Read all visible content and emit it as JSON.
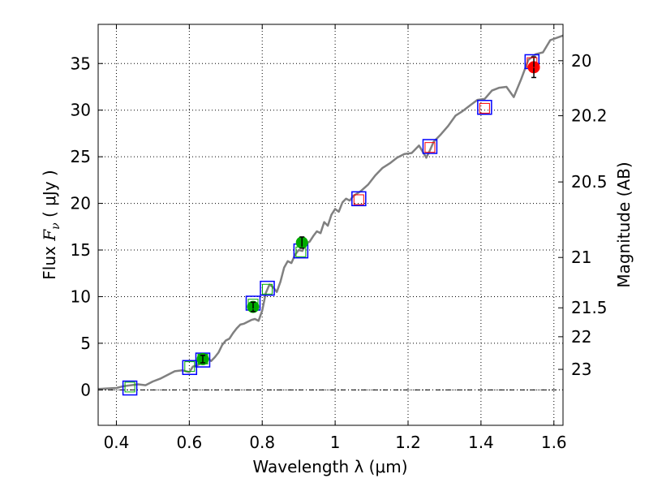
{
  "chart_data": {
    "type": "scatter",
    "title": "",
    "xlabel": "Wavelength  λ (μm)",
    "ylabel_parts": [
      "Flux  ",
      "F",
      "ν",
      "  (  μJy )"
    ],
    "right_ylabel": "Magnitude (AB)",
    "xlim": [
      0.35,
      1.625
    ],
    "ylim": [
      -3.8,
      39.2
    ],
    "grid": true,
    "x_ticks": [
      0.4,
      0.6,
      0.8,
      1.0,
      1.2,
      1.4,
      1.6
    ],
    "x_tick_labels": [
      "0.4",
      "0.6",
      "0.8",
      "1",
      "1.2",
      "1.4",
      "1.6"
    ],
    "y_ticks": [
      0,
      5,
      10,
      15,
      20,
      25,
      30,
      35
    ],
    "y_tick_labels": [
      "0",
      "5",
      "10",
      "15",
      "20",
      "25",
      "30",
      "35"
    ],
    "right_ticks": [
      {
        "label": "20",
        "flux": 35.3
      },
      {
        "label": "20.2",
        "flux": 29.4
      },
      {
        "label": "20.5",
        "flux": 22.3
      },
      {
        "label": "21",
        "flux": 14.2
      },
      {
        "label": "21.5",
        "flux": 8.8
      },
      {
        "label": "22",
        "flux": 5.7
      },
      {
        "label": "23",
        "flux": 2.2
      }
    ],
    "zero_line": 0,
    "model_spectrum": {
      "color": "#808080",
      "x": [
        0.35,
        0.4,
        0.42,
        0.44,
        0.46,
        0.48,
        0.5,
        0.52,
        0.54,
        0.56,
        0.58,
        0.6,
        0.61,
        0.62,
        0.63,
        0.64,
        0.65,
        0.66,
        0.67,
        0.68,
        0.69,
        0.7,
        0.71,
        0.72,
        0.73,
        0.74,
        0.75,
        0.76,
        0.77,
        0.78,
        0.79,
        0.8,
        0.81,
        0.82,
        0.83,
        0.84,
        0.85,
        0.86,
        0.87,
        0.88,
        0.89,
        0.9,
        0.91,
        0.92,
        0.93,
        0.94,
        0.95,
        0.96,
        0.97,
        0.98,
        0.99,
        1.0,
        1.01,
        1.02,
        1.03,
        1.04,
        1.05,
        1.07,
        1.09,
        1.11,
        1.13,
        1.15,
        1.17,
        1.19,
        1.21,
        1.23,
        1.25,
        1.26,
        1.27,
        1.29,
        1.31,
        1.33,
        1.35,
        1.37,
        1.39,
        1.41,
        1.43,
        1.45,
        1.47,
        1.49,
        1.51,
        1.53,
        1.55,
        1.57,
        1.59,
        1.625
      ],
      "y": [
        0.1,
        0.2,
        0.4,
        0.5,
        0.6,
        0.5,
        0.9,
        1.2,
        1.6,
        2.0,
        2.1,
        1.9,
        2.5,
        2.6,
        2.8,
        3.2,
        3.4,
        3.1,
        3.5,
        4.0,
        4.8,
        5.3,
        5.5,
        6.1,
        6.6,
        7.0,
        7.1,
        7.3,
        7.5,
        7.6,
        7.4,
        8.5,
        10.4,
        11.3,
        11.0,
        10.5,
        11.6,
        13.1,
        13.8,
        13.6,
        14.5,
        15.0,
        14.9,
        15.7,
        15.9,
        16.5,
        17.0,
        16.8,
        18.0,
        17.6,
        18.8,
        19.4,
        19.1,
        20.1,
        20.5,
        20.3,
        20.8,
        21.3,
        22.0,
        23.0,
        23.8,
        24.3,
        24.9,
        25.3,
        25.4,
        26.2,
        24.9,
        25.7,
        26.6,
        27.4,
        28.3,
        29.4,
        29.9,
        30.5,
        31.1,
        31.2,
        32.1,
        32.4,
        32.5,
        31.4,
        33.3,
        35.4,
        36.0,
        36.2,
        37.5,
        38.0
      ]
    },
    "series": [
      {
        "marker": "open-square",
        "color": "#0000ff",
        "x": [
          0.437,
          0.601,
          0.637,
          0.775,
          0.814,
          0.906,
          1.065,
          1.26,
          1.41,
          1.54
        ],
        "y": [
          0.2,
          2.4,
          3.2,
          9.3,
          10.9,
          14.9,
          20.5,
          26.1,
          30.3,
          35.2
        ]
      },
      {
        "marker": "filled-circle",
        "color": "#00aa00",
        "x": [
          0.637,
          0.775,
          0.909
        ],
        "y": [
          3.3,
          8.9,
          15.8
        ],
        "yerr": [
          0.4,
          0.5,
          0.6
        ]
      },
      {
        "marker": "filled-circle",
        "color": "#ff0000",
        "x": [
          1.545
        ],
        "y": [
          34.6
        ],
        "yerr": [
          1.1
        ]
      },
      {
        "marker": "inner-square",
        "color_by_index": [
          "#00aa00",
          "#00aa00",
          "#00aa00",
          "#00aa00",
          "#00aa00",
          "#00aa00",
          "#ff0000",
          "#ff0000",
          "#ff0000",
          "#ff0000"
        ],
        "x": [
          0.437,
          0.601,
          0.637,
          0.775,
          0.814,
          0.906,
          1.065,
          1.26,
          1.41,
          1.54
        ],
        "y": [
          0.3,
          2.5,
          3.3,
          9.2,
          10.8,
          14.8,
          20.4,
          26.0,
          30.2,
          35.1
        ]
      }
    ]
  }
}
